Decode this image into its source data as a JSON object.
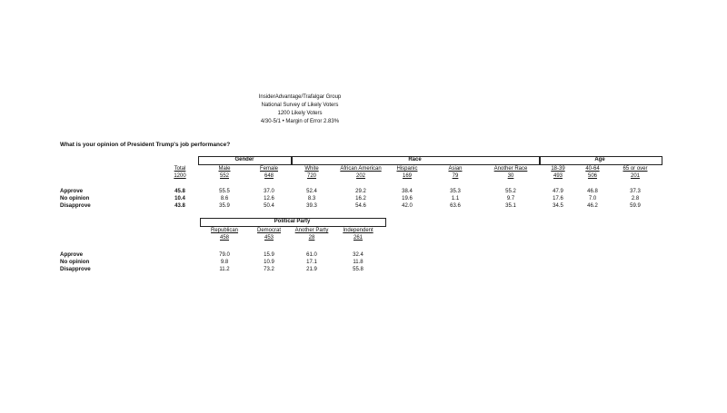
{
  "header": {
    "line1": "InsiderAdvantage/Trafalgar Group",
    "line2": "National Survey of Likely Voters",
    "line3": "1200 Likely Voters",
    "line4": "4/30-5/1 • Margin of Error 2.83%"
  },
  "question": "What is your opinion of President Trump's job performance?",
  "table1": {
    "groups": {
      "gender": "Gender",
      "race": "Race",
      "age": "Age"
    },
    "columns": [
      {
        "label": "Total",
        "n": "1200"
      },
      {
        "label": "Male",
        "n": "552"
      },
      {
        "label": "Female",
        "n": "648"
      },
      {
        "label": "White",
        "n": "720"
      },
      {
        "label": "African American",
        "n": "202"
      },
      {
        "label": "Hispanic",
        "n": "169"
      },
      {
        "label": "Asian",
        "n": "79"
      },
      {
        "label": "Another Race",
        "n": "30"
      },
      {
        "label": "18-39",
        "n": "493"
      },
      {
        "label": "40-64",
        "n": "506"
      },
      {
        "label": "65 or over",
        "n": "201"
      }
    ],
    "rows": [
      {
        "label": "Approve",
        "values": [
          "45.8",
          "55.5",
          "37.0",
          "52.4",
          "29.2",
          "38.4",
          "35.3",
          "55.2",
          "47.9",
          "46.8",
          "37.3"
        ]
      },
      {
        "label": "No opinion",
        "values": [
          "10.4",
          "8.6",
          "12.6",
          "8.3",
          "16.2",
          "19.6",
          "1.1",
          "9.7",
          "17.6",
          "7.0",
          "2.8"
        ]
      },
      {
        "label": "Disapprove",
        "values": [
          "43.8",
          "35.9",
          "50.4",
          "39.3",
          "54.6",
          "42.0",
          "63.6",
          "35.1",
          "34.5",
          "46.2",
          "59.9"
        ]
      }
    ]
  },
  "table2": {
    "group": "Political Party",
    "columns": [
      {
        "label": "Republican",
        "n": "458"
      },
      {
        "label": "Democrat",
        "n": "453"
      },
      {
        "label": "Another Party",
        "n": "28"
      },
      {
        "label": "Independent",
        "n": "261"
      }
    ],
    "rows": [
      {
        "label": "Approve",
        "values": [
          "79.0",
          "15.9",
          "61.0",
          "32.4"
        ]
      },
      {
        "label": "No opinion",
        "values": [
          "9.8",
          "10.9",
          "17.1",
          "11.8"
        ]
      },
      {
        "label": "Disapprove",
        "values": [
          "11.2",
          "73.2",
          "21.9",
          "55.8"
        ]
      }
    ]
  }
}
